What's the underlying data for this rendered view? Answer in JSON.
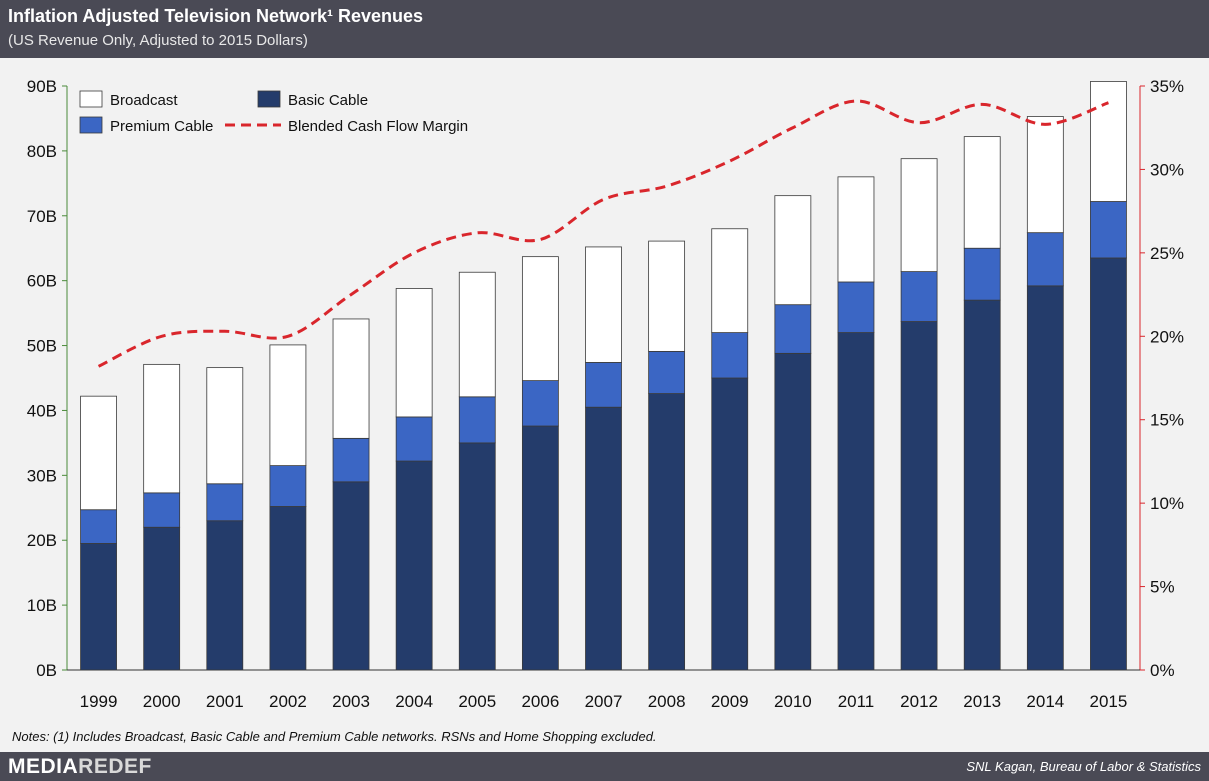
{
  "header": {
    "title": "Inflation Adjusted Television Network¹ Revenues",
    "subtitle": "(US Revenue Only, Adjusted to 2015 Dollars)"
  },
  "footer": {
    "notes": "Notes: (1) Includes Broadcast, Basic Cable and Premium Cable networks. RSNs and Home Shopping excluded.",
    "logo_part1": "MEDIA",
    "logo_part2": "REDEF",
    "source": "SNL Kagan, Bureau of Labor & Statistics"
  },
  "chart_data": {
    "type": "bar",
    "stacked": true,
    "categories": [
      "1999",
      "2000",
      "2001",
      "2002",
      "2003",
      "2004",
      "2005",
      "2006",
      "2007",
      "2008",
      "2009",
      "2010",
      "2011",
      "2012",
      "2013",
      "2014",
      "2015"
    ],
    "series": [
      {
        "name": "Basic Cable",
        "color": "#243c6b",
        "values": [
          19.5,
          22,
          23,
          25.2,
          29,
          32.2,
          35,
          37.6,
          40.5,
          42.6,
          45,
          48.8,
          52,
          53.7,
          57,
          59.2,
          63.5
        ]
      },
      {
        "name": "Premium Cable",
        "color": "#3b66c4",
        "values": [
          5.2,
          5.3,
          5.7,
          6.3,
          6.7,
          6.8,
          7.1,
          7.0,
          6.9,
          6.5,
          7.0,
          7.5,
          7.8,
          7.7,
          8.0,
          8.2,
          8.7
        ]
      },
      {
        "name": "Broadcast",
        "color": "#ffffff",
        "values": [
          17.5,
          19.8,
          17.9,
          18.6,
          18.4,
          19.8,
          19.2,
          19.1,
          17.8,
          17.0,
          16.0,
          16.8,
          16.2,
          17.4,
          17.2,
          17.9,
          18.5
        ]
      }
    ],
    "line": {
      "name": "Blended Cash Flow Margin",
      "color": "#d9262c",
      "axis": "right",
      "values": [
        18.2,
        20.0,
        20.3,
        20.0,
        22.5,
        25.0,
        26.2,
        25.8,
        28.2,
        29.0,
        30.5,
        32.5,
        34.1,
        32.8,
        33.9,
        32.7,
        34.0
      ]
    },
    "y_left": {
      "ticks": [
        "0B",
        "10B",
        "20B",
        "30B",
        "40B",
        "50B",
        "60B",
        "70B",
        "80B",
        "90B"
      ],
      "ylim": [
        0,
        90
      ]
    },
    "y_right": {
      "ticks": [
        "0%",
        "5%",
        "10%",
        "15%",
        "20%",
        "25%",
        "30%",
        "35%"
      ],
      "ylim": [
        0,
        35
      ]
    },
    "legend": [
      {
        "name": "Broadcast",
        "kind": "box",
        "color": "#ffffff"
      },
      {
        "name": "Basic Cable",
        "kind": "box",
        "color": "#243c6b"
      },
      {
        "name": "Premium Cable",
        "kind": "box",
        "color": "#3b66c4"
      },
      {
        "name": "Blended Cash Flow Margin",
        "kind": "dash",
        "color": "#d9262c"
      }
    ],
    "legend_position": "top-left",
    "grid": false
  }
}
